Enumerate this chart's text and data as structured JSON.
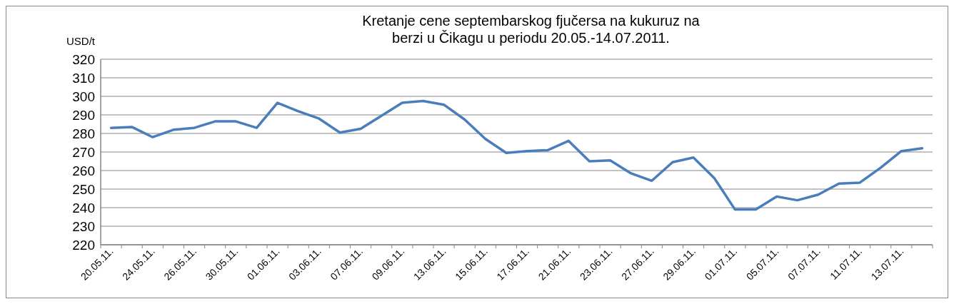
{
  "chart_data": {
    "type": "line",
    "title": "Kretanje cene septembarskog fjučersa na kukuruz na berzi u Čikagu u periodu 20.05.-14.07.2011.",
    "ylabel": "USD/t",
    "categories": [
      "20.05.11.",
      null,
      "24.05.11.",
      null,
      "26.05.11.",
      null,
      "30.05.11.",
      null,
      "01.06.11.",
      null,
      "03.06.11.",
      null,
      "07.06.11.",
      null,
      "09.06.11.",
      null,
      "13.06.11.",
      null,
      "15.06.11.",
      null,
      "17.06.11.",
      null,
      "21.06.11.",
      null,
      "23.06.11.",
      null,
      "27.06.11.",
      null,
      "29.06.11.",
      null,
      "01.07.11.",
      null,
      "05.07.11.",
      null,
      "07.07.11.",
      null,
      "11.07.11.",
      null,
      "13.07.11.",
      null
    ],
    "series": [
      {
        "color": "#4a7ebb",
        "values": [
          283,
          283.5,
          278,
          282,
          283,
          286.5,
          286.5,
          283,
          296.5,
          292,
          288,
          280.5,
          282.5,
          289.5,
          296.5,
          297.5,
          295.5,
          287.5,
          277,
          269.5,
          270.5,
          271,
          276,
          265,
          265.5,
          258.5,
          254.5,
          264.5,
          267,
          256,
          239,
          239,
          246,
          244,
          247,
          253,
          253.5,
          261.5,
          270.5,
          272
        ]
      }
    ],
    "ylim": [
      220,
      320
    ],
    "yticks": [
      220,
      230,
      240,
      250,
      260,
      270,
      280,
      290,
      300,
      310,
      320
    ],
    "grid": "y",
    "marker": "none",
    "line_style": "solid"
  }
}
